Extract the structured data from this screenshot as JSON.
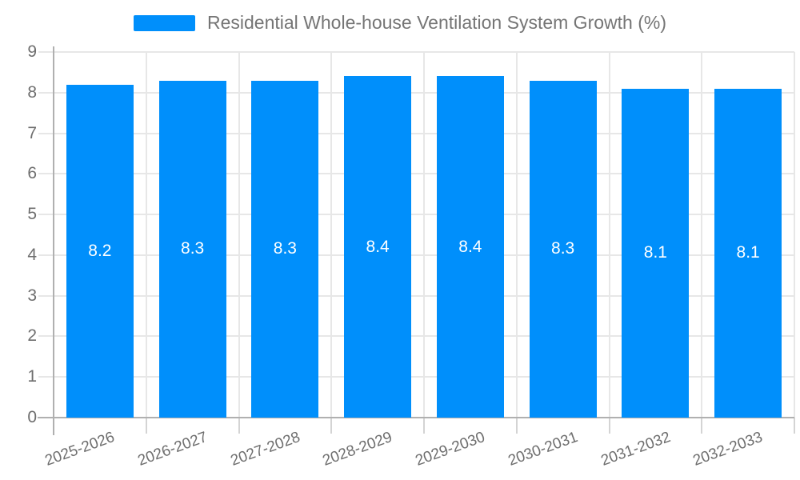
{
  "chart_data": {
    "type": "bar",
    "title": "Residential Whole-house Ventilation System Growth (%)",
    "categories": [
      "2025-2026",
      "2026-2027",
      "2027-2028",
      "2028-2029",
      "2029-2030",
      "2030-2031",
      "2031-2032",
      "2032-2033"
    ],
    "series": [
      {
        "name": "Residential Whole-house Ventilation System Growth (%)",
        "values": [
          8.2,
          8.3,
          8.3,
          8.4,
          8.4,
          8.3,
          8.1,
          8.1
        ]
      }
    ],
    "value_labels": [
      "8.2",
      "8.3",
      "8.3",
      "8.4",
      "8.4",
      "8.3",
      "8.1",
      "8.1"
    ],
    "xlabel": "",
    "ylabel": "",
    "ylim": [
      0,
      9
    ],
    "yticks": [
      0,
      1,
      2,
      3,
      4,
      5,
      6,
      7,
      8,
      9
    ],
    "grid": "on",
    "legend_position": "top",
    "bar_color": "#008FFB",
    "data_label_color": "#ffffff"
  },
  "legend": {
    "label": "Residential Whole-house Ventilation System Growth (%)",
    "swatch_color": "#008FFB"
  },
  "colors": {
    "grid": "#e7e7e7",
    "axis": "#b0b0b0",
    "minor_tick": "#d4d4d4",
    "text": "#6e6e6e"
  }
}
